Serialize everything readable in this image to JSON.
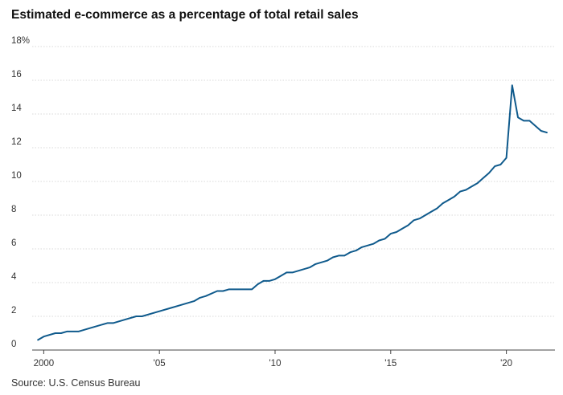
{
  "chart_data": {
    "type": "line",
    "title": "Estimated e-commerce as a percentage of total retail sales",
    "source": "Source: U.S. Census Bureau",
    "xlabel": "",
    "ylabel": "",
    "xlim": [
      1999.5,
      2022.1
    ],
    "ylim": [
      0,
      18
    ],
    "grid": true,
    "y_ticks": [
      {
        "value": 0,
        "label": "0"
      },
      {
        "value": 2,
        "label": "2"
      },
      {
        "value": 4,
        "label": "4"
      },
      {
        "value": 6,
        "label": "6"
      },
      {
        "value": 8,
        "label": "8"
      },
      {
        "value": 10,
        "label": "10"
      },
      {
        "value": 12,
        "label": "12"
      },
      {
        "value": 14,
        "label": "14"
      },
      {
        "value": 16,
        "label": "16"
      },
      {
        "value": 18,
        "label": "18%"
      }
    ],
    "x_ticks": [
      {
        "value": 2000,
        "label": "2000"
      },
      {
        "value": 2005,
        "label": "'05"
      },
      {
        "value": 2010,
        "label": "'10"
      },
      {
        "value": 2015,
        "label": "'15"
      },
      {
        "value": 2020,
        "label": "'20"
      }
    ],
    "series": [
      {
        "color": "#0f5a8c",
        "x": [
          1999.75,
          2000.0,
          2000.5,
          2000.75,
          2001.0,
          2001.25,
          2001.5,
          2002.0,
          2002.75,
          2003.0,
          2003.5,
          2004.0,
          2004.25,
          2005.0,
          2005.5,
          2006.0,
          2006.5,
          2006.75,
          2007.0,
          2007.5,
          2007.75,
          2008.0,
          2008.25,
          2008.5,
          2009.0,
          2009.25,
          2009.5,
          2009.75,
          2010.0,
          2010.25,
          2010.5,
          2010.75,
          2011.0,
          2011.5,
          2011.75,
          2012.0,
          2012.25,
          2012.5,
          2012.75,
          2013.0,
          2013.25,
          2013.5,
          2013.75,
          2014.0,
          2014.25,
          2014.5,
          2014.75,
          2015.0,
          2015.25,
          2015.5,
          2015.75,
          2016.0,
          2016.25,
          2016.5,
          2016.75,
          2017.0,
          2017.25,
          2017.5,
          2017.75,
          2018.0,
          2018.25,
          2018.5,
          2018.75,
          2019.0,
          2019.25,
          2019.5,
          2019.75,
          2020.0,
          2020.25,
          2020.5,
          2020.75,
          2021.0,
          2021.25,
          2021.5,
          2021.75
        ],
        "values": [
          0.6,
          0.8,
          1.0,
          1.0,
          1.1,
          1.1,
          1.1,
          1.3,
          1.6,
          1.6,
          1.8,
          2.0,
          2.0,
          2.3,
          2.5,
          2.7,
          2.9,
          3.1,
          3.2,
          3.5,
          3.5,
          3.6,
          3.6,
          3.6,
          3.6,
          3.9,
          4.1,
          4.1,
          4.2,
          4.4,
          4.6,
          4.6,
          4.7,
          4.9,
          5.1,
          5.2,
          5.3,
          5.5,
          5.6,
          5.6,
          5.8,
          5.9,
          6.1,
          6.2,
          6.3,
          6.5,
          6.6,
          6.9,
          7.0,
          7.2,
          7.4,
          7.7,
          7.8,
          8.0,
          8.2,
          8.4,
          8.7,
          8.9,
          9.1,
          9.4,
          9.5,
          9.7,
          9.9,
          10.2,
          10.5,
          10.9,
          11.0,
          11.4,
          15.7,
          13.8,
          13.6,
          13.6,
          13.3,
          13.0,
          12.9
        ]
      }
    ]
  }
}
